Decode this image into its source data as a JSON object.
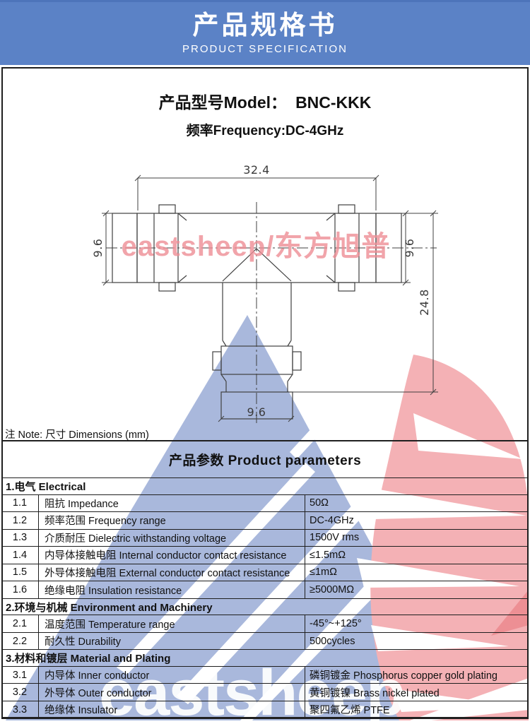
{
  "header": {
    "title_cn": "产品规格书",
    "title_en": "PRODUCT SPECIFICATION",
    "bg_color": "#5b82c6"
  },
  "product": {
    "model_label": "产品型号Model：",
    "model_value": "BNC-KKK",
    "frequency_line": "频率Frequency:DC-4GHz"
  },
  "drawing": {
    "note": "注 Note: 尺寸 Dimensions (mm)",
    "watermark_text": "eastsheep/东方旭普",
    "dimensions": {
      "overall_width": "32.4",
      "left_diameter": "9.6",
      "right_diameter": "9.6",
      "overall_height": "24.8",
      "bottom_diameter": "9.6"
    }
  },
  "watermark": {
    "brand": "eastsheep",
    "triangle_color": "#a9b8dc",
    "eagle_color": "#f4b1b5",
    "eagle_accent": "#ed8f94"
  },
  "table": {
    "title": "产品参数 Product parameters",
    "sections": [
      {
        "heading": "1.电气 Electrical",
        "rows": [
          [
            "1.1",
            "阻抗 Impedance",
            "50Ω"
          ],
          [
            "1.2",
            "频率范围 Frequency range",
            "DC-4GHz"
          ],
          [
            "1.3",
            "介质耐压 Dielectric withstanding voltage",
            "1500V rms"
          ],
          [
            "1.4",
            "内导体接触电阻 Internal conductor contact resistance",
            "≤1.5mΩ"
          ],
          [
            "1.5",
            "外导体接触电阻 External conductor contact resistance",
            "≤1mΩ"
          ],
          [
            "1.6",
            "绝缘电阻 Insulation resistance",
            "≥5000MΩ"
          ]
        ]
      },
      {
        "heading": "2.环境与机械 Environment and Machinery",
        "rows": [
          [
            "2.1",
            "温度范围 Temperature range",
            "-45°~+125°"
          ],
          [
            "2.2",
            "耐久性 Durability",
            "500cycles"
          ]
        ]
      },
      {
        "heading": "3.材料和镀层 Material and Plating",
        "rows": [
          [
            "3.1",
            "内导体 Inner conductor",
            "磷铜镀金 Phosphorus copper gold plating"
          ],
          [
            "3.2",
            "外导体 Outer conductor",
            "黄铜镀镍 Brass nickel plated"
          ],
          [
            "3.3",
            "绝缘体 Insulator",
            "聚四氟乙烯 PTFE"
          ]
        ]
      }
    ]
  }
}
